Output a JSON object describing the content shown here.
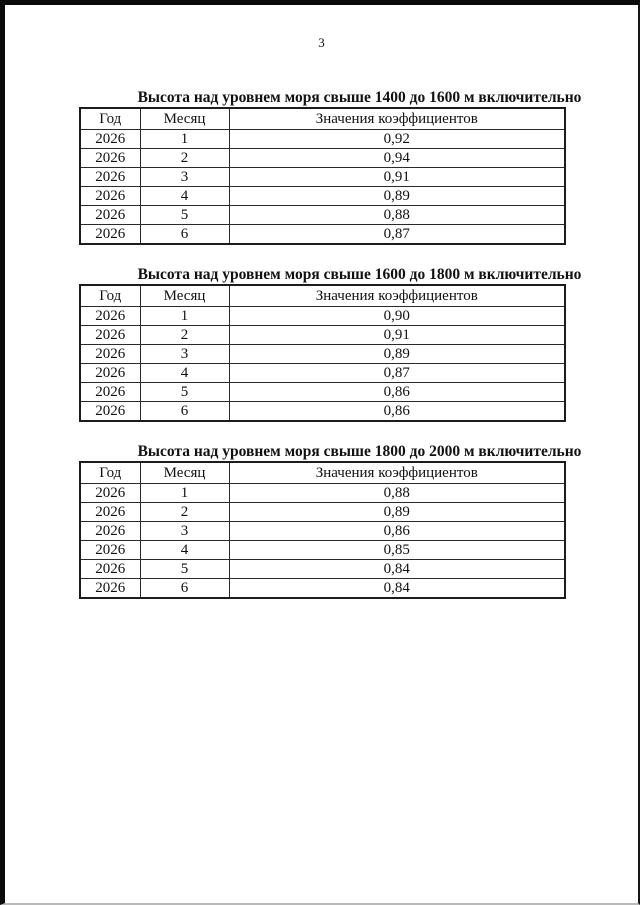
{
  "page": {
    "number": "3"
  },
  "tables": [
    {
      "title": "Высота над уровнем моря свыше 1400 до 1600 м включительно",
      "headers": [
        "Год",
        "Месяц",
        "Значения коэффициентов"
      ],
      "rows": [
        [
          "2026",
          "1",
          "0,92"
        ],
        [
          "2026",
          "2",
          "0,94"
        ],
        [
          "2026",
          "3",
          "0,91"
        ],
        [
          "2026",
          "4",
          "0,89"
        ],
        [
          "2026",
          "5",
          "0,88"
        ],
        [
          "2026",
          "6",
          "0,87"
        ]
      ]
    },
    {
      "title": "Высота над уровнем моря свыше 1600 до 1800 м включительно",
      "headers": [
        "Год",
        "Месяц",
        "Значения коэффициентов"
      ],
      "rows": [
        [
          "2026",
          "1",
          "0,90"
        ],
        [
          "2026",
          "2",
          "0,91"
        ],
        [
          "2026",
          "3",
          "0,89"
        ],
        [
          "2026",
          "4",
          "0,87"
        ],
        [
          "2026",
          "5",
          "0,86"
        ],
        [
          "2026",
          "6",
          "0,86"
        ]
      ]
    },
    {
      "title": "Высота над уровнем моря свыше 1800 до 2000 м включительно",
      "headers": [
        "Год",
        "Месяц",
        "Значения коэффициентов"
      ],
      "rows": [
        [
          "2026",
          "1",
          "0,88"
        ],
        [
          "2026",
          "2",
          "0,89"
        ],
        [
          "2026",
          "3",
          "0,86"
        ],
        [
          "2026",
          "4",
          "0,85"
        ],
        [
          "2026",
          "5",
          "0,84"
        ],
        [
          "2026",
          "6",
          "0,84"
        ]
      ]
    }
  ]
}
